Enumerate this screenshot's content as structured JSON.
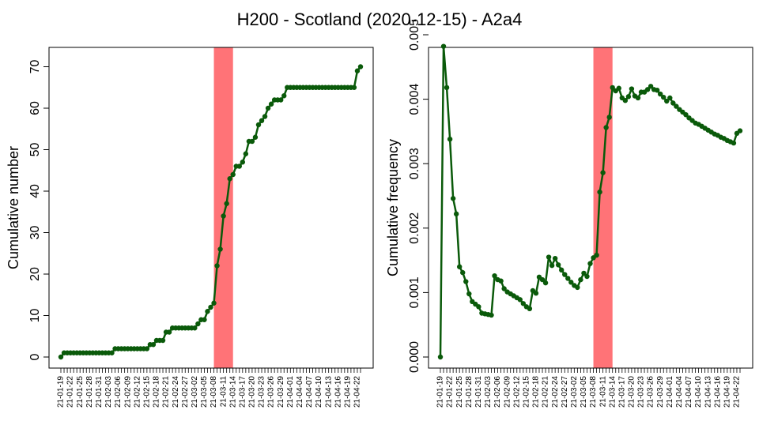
{
  "title": "H200 - Scotland (2020-12-15) - A2a4",
  "chart_data": [
    {
      "type": "line",
      "ylabel": "Cumulative number",
      "ylim": [
        0,
        72
      ],
      "y_ticks": [
        "0",
        "10",
        "20",
        "30",
        "40",
        "50",
        "60",
        "70"
      ],
      "highlight_range": [
        "21-03-08",
        "21-03-14"
      ],
      "highlight_color": "#ff7377",
      "line_color": "#0a5a0a",
      "x_start": "2021-01-19",
      "x_end": "2021-04-23",
      "x_tick_labels": [
        "21-01-19",
        "21-01-22",
        "21-01-25",
        "21-01-28",
        "21-01-31",
        "21-02-03",
        "21-02-06",
        "21-02-09",
        "21-02-12",
        "21-02-15",
        "21-02-18",
        "21-02-21",
        "21-02-24",
        "21-02-27",
        "21-03-02",
        "21-03-05",
        "21-03-08",
        "21-03-11",
        "21-03-14",
        "21-03-17",
        "21-03-20",
        "21-03-23",
        "21-03-26",
        "21-03-29",
        "21-04-01",
        "21-04-04",
        "21-04-07",
        "21-04-10",
        "21-04-13",
        "21-04-16",
        "21-04-19",
        "21-04-22"
      ],
      "values": [
        0,
        1,
        1,
        1,
        1,
        1,
        1,
        1,
        1,
        1,
        1,
        1,
        1,
        1,
        1,
        1,
        1,
        2,
        2,
        2,
        2,
        2,
        2,
        2,
        2,
        2,
        2,
        2,
        3,
        3,
        4,
        4,
        4,
        6,
        6,
        7,
        7,
        7,
        7,
        7,
        7,
        7,
        7,
        8,
        9,
        9,
        11,
        12,
        13,
        22,
        26,
        34,
        37,
        43,
        44,
        46,
        46,
        47,
        49,
        52,
        52,
        53,
        56,
        57,
        58,
        60,
        61,
        62,
        62,
        62,
        63,
        65,
        65,
        65,
        65,
        65,
        65,
        65,
        65,
        65,
        65,
        65,
        65,
        65,
        65,
        65,
        65,
        65,
        65,
        65,
        65,
        65,
        65,
        69,
        70
      ]
    },
    {
      "type": "line",
      "ylabel": "Cumulative frequency",
      "ylim": [
        0,
        0.005
      ],
      "y_ticks": [
        "0.000",
        "0.001",
        "0.002",
        "0.003",
        "0.004",
        "0.005"
      ],
      "highlight_range": [
        "21-03-08",
        "21-03-14"
      ],
      "highlight_color": "#ff7377",
      "line_color": "#0a5a0a",
      "x_start": "2021-01-19",
      "x_end": "2021-04-23",
      "x_tick_labels": [
        "21-01-19",
        "21-01-22",
        "21-01-25",
        "21-01-28",
        "21-01-31",
        "21-02-03",
        "21-02-06",
        "21-02-09",
        "21-02-12",
        "21-02-15",
        "21-02-18",
        "21-02-21",
        "21-02-24",
        "21-02-27",
        "21-03-02",
        "21-03-05",
        "21-03-08",
        "21-03-11",
        "21-03-14",
        "21-03-17",
        "21-03-20",
        "21-03-23",
        "21-03-26",
        "21-03-29",
        "21-04-01",
        "21-04-04",
        "21-04-07",
        "21-04-10",
        "21-04-13",
        "21-04-16",
        "21-04-19",
        "21-04-22"
      ],
      "values": [
        0,
        0.00482,
        0.00418,
        0.00338,
        0.00246,
        0.00222,
        0.0014,
        0.00131,
        0.00117,
        0.00098,
        0.00086,
        0.00082,
        0.00078,
        0.00068,
        0.00067,
        0.00066,
        0.00065,
        0.00126,
        0.0012,
        0.00118,
        0.00106,
        0.00101,
        0.00098,
        0.00095,
        0.00092,
        0.00089,
        0.00083,
        0.00078,
        0.00075,
        0.00103,
        0.00099,
        0.00124,
        0.0012,
        0.00115,
        0.00155,
        0.00142,
        0.00153,
        0.00143,
        0.00135,
        0.00128,
        0.00122,
        0.00116,
        0.00111,
        0.00108,
        0.0012,
        0.0013,
        0.00125,
        0.00145,
        0.00154,
        0.00158,
        0.00256,
        0.00286,
        0.00356,
        0.00372,
        0.00418,
        0.00413,
        0.00417,
        0.00402,
        0.00398,
        0.00404,
        0.00416,
        0.00405,
        0.00402,
        0.00411,
        0.00411,
        0.00415,
        0.0042,
        0.00415,
        0.00414,
        0.00408,
        0.00403,
        0.00397,
        0.00402,
        0.00394,
        0.00389,
        0.00384,
        0.0038,
        0.00376,
        0.00371,
        0.00367,
        0.00363,
        0.00361,
        0.00358,
        0.00355,
        0.00352,
        0.00349,
        0.00346,
        0.00344,
        0.00341,
        0.00339,
        0.00336,
        0.00334,
        0.00332,
        0.00347,
        0.00351
      ]
    }
  ]
}
